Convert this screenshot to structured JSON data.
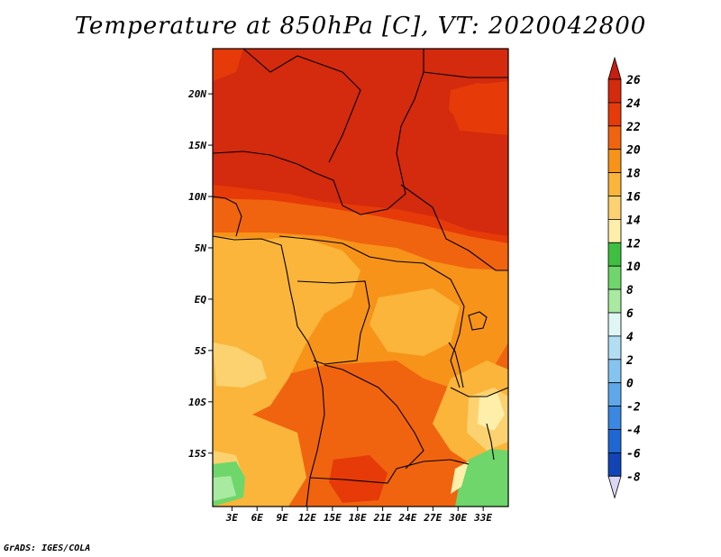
{
  "title": "Temperature at 850hPa [C], VT: 2020042800",
  "credit": "GrADS: IGES/COLA",
  "map": {
    "region": "Central Africa",
    "lat_labels": [
      {
        "lat": 20,
        "label": "20N"
      },
      {
        "lat": 15,
        "label": "15N"
      },
      {
        "lat": 10,
        "label": "10N"
      },
      {
        "lat": 5,
        "label": "5N"
      },
      {
        "lat": 0,
        "label": "EQ"
      },
      {
        "lat": -5,
        "label": "5S"
      },
      {
        "lat": -10,
        "label": "10S"
      },
      {
        "lat": -15,
        "label": "15S"
      }
    ],
    "lon_labels": [
      {
        "lon": 3,
        "label": "3E"
      },
      {
        "lon": 6,
        "label": "6E"
      },
      {
        "lon": 9,
        "label": "9E"
      },
      {
        "lon": 12,
        "label": "12E"
      },
      {
        "lon": 15,
        "label": "15E"
      },
      {
        "lon": 18,
        "label": "18E"
      },
      {
        "lon": 21,
        "label": "21E"
      },
      {
        "lon": 24,
        "label": "24E"
      },
      {
        "lon": 27,
        "label": "27E"
      },
      {
        "lon": 30,
        "label": "30E"
      },
      {
        "lon": 33,
        "label": "33E"
      }
    ]
  },
  "colorbar": {
    "levels": [
      {
        "value": "26",
        "color": "#d42a0e"
      },
      {
        "value": "24",
        "color": "#e63a08"
      },
      {
        "value": "22",
        "color": "#f0640f"
      },
      {
        "value": "20",
        "color": "#f79319"
      },
      {
        "value": "18",
        "color": "#fab53a"
      },
      {
        "value": "16",
        "color": "#fcd270"
      },
      {
        "value": "14",
        "color": "#fdeeaa"
      },
      {
        "value": "12",
        "color": "#3fbf40"
      },
      {
        "value": "10",
        "color": "#6ed66a"
      },
      {
        "value": "8",
        "color": "#a8eaa0"
      },
      {
        "value": "6",
        "color": "#dff6f4"
      },
      {
        "value": "4",
        "color": "#b2def4"
      },
      {
        "value": "2",
        "color": "#86c4f0"
      },
      {
        "value": "0",
        "color": "#5ea8ea"
      },
      {
        "value": "-2",
        "color": "#3a88e2"
      },
      {
        "value": "-4",
        "color": "#1f67d2"
      },
      {
        "value": "-6",
        "color": "#1144b6"
      },
      {
        "value": "-8",
        "color": "#082898"
      }
    ],
    "top_color": "#c61e10",
    "bottom_color": "#dcd6f4"
  }
}
